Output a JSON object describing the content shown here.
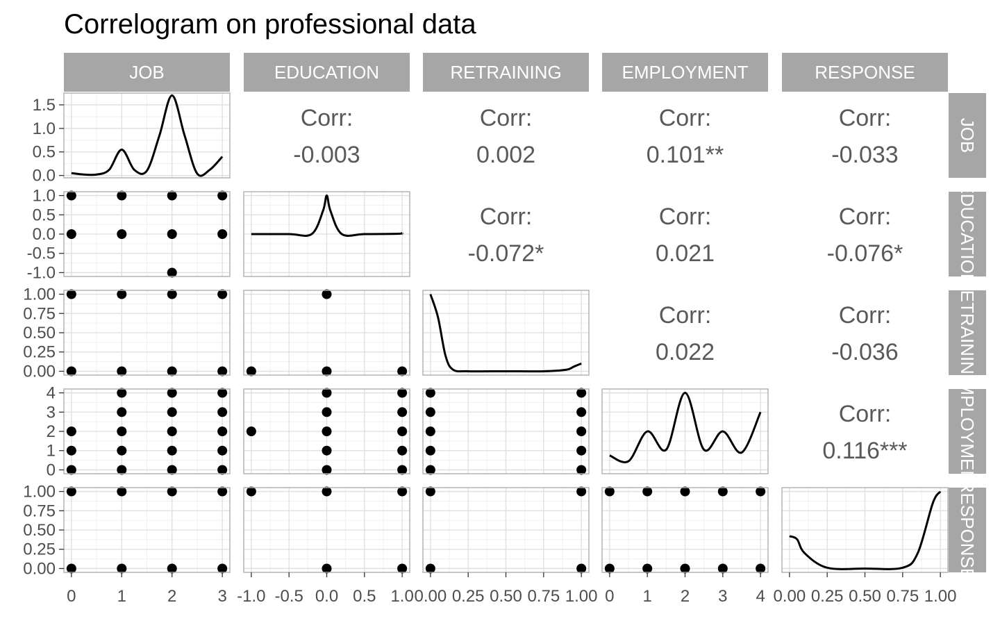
{
  "chart_data": {
    "type": "scatter",
    "title": "Correlogram on professional data",
    "grid": true,
    "variables": [
      "JOB",
      "EDUCATION",
      "RETRAINING",
      "EMPLOYMENT",
      "RESPONSE"
    ],
    "column_strips": [
      "JOB",
      "EDUCATION",
      "RETRAINING",
      "EMPLOYMENT",
      "RESPONSE"
    ],
    "row_strips": [
      "JOB",
      "EDUCATION",
      "RETRAINING",
      "EMPLOYMENT",
      "RESPONSE"
    ],
    "x_axes": [
      {
        "range": [
          -0.15,
          3.15
        ],
        "ticks": [
          0,
          1,
          2,
          3
        ],
        "tick_labels": [
          "0",
          "1",
          "2",
          "3"
        ]
      },
      {
        "range": [
          -1.1,
          1.1
        ],
        "ticks": [
          -1,
          -0.5,
          0,
          0.5,
          1
        ],
        "tick_labels": [
          "-1.0",
          "-0.5",
          "0.0",
          "0.5",
          "1.0"
        ]
      },
      {
        "range": [
          -0.05,
          1.05
        ],
        "ticks": [
          0,
          0.25,
          0.5,
          0.75,
          1
        ],
        "tick_labels": [
          "0.00",
          "0.25",
          "0.50",
          "0.75",
          "1.00"
        ]
      },
      {
        "range": [
          -0.2,
          4.2
        ],
        "ticks": [
          0,
          1,
          2,
          3,
          4
        ],
        "tick_labels": [
          "0",
          "1",
          "2",
          "3",
          "4"
        ]
      },
      {
        "range": [
          -0.05,
          1.05
        ],
        "ticks": [
          0,
          0.25,
          0.5,
          0.75,
          1
        ],
        "tick_labels": [
          "0.00",
          "0.25",
          "0.50",
          "0.75",
          "1.00"
        ]
      }
    ],
    "y_axes": [
      {
        "range": [
          -0.05,
          1.75
        ],
        "ticks": [
          0,
          0.5,
          1,
          1.5
        ],
        "tick_labels": [
          "0.0",
          "0.5",
          "1.0",
          "1.5"
        ]
      },
      {
        "range": [
          -1.1,
          1.1
        ],
        "ticks": [
          -1,
          -0.5,
          0,
          0.5,
          1
        ],
        "tick_labels": [
          "-1.0",
          "-0.5",
          "0.0",
          "0.5",
          "1.0"
        ]
      },
      {
        "range": [
          -0.05,
          1.05
        ],
        "ticks": [
          0,
          0.25,
          0.5,
          0.75,
          1
        ],
        "tick_labels": [
          "0.00",
          "0.25",
          "0.50",
          "0.75",
          "1.00"
        ]
      },
      {
        "range": [
          -0.2,
          4.2
        ],
        "ticks": [
          0,
          1,
          2,
          3,
          4
        ],
        "tick_labels": [
          "0",
          "1",
          "2",
          "3",
          "4"
        ]
      },
      {
        "range": [
          -0.05,
          1.05
        ],
        "ticks": [
          0,
          0.25,
          0.5,
          0.75,
          1
        ],
        "tick_labels": [
          "0.00",
          "0.25",
          "0.50",
          "0.75",
          "1.00"
        ]
      }
    ],
    "correlations": [
      {
        "row": "JOB",
        "col": "EDUCATION",
        "label": "Corr:",
        "value": "-0.003"
      },
      {
        "row": "JOB",
        "col": "RETRAINING",
        "label": "Corr:",
        "value": "0.002"
      },
      {
        "row": "JOB",
        "col": "EMPLOYMENT",
        "label": "Corr:",
        "value": "0.101**"
      },
      {
        "row": "JOB",
        "col": "RESPONSE",
        "label": "Corr:",
        "value": "-0.033"
      },
      {
        "row": "EDUCATION",
        "col": "RETRAINING",
        "label": "Corr:",
        "value": "-0.072*"
      },
      {
        "row": "EDUCATION",
        "col": "EMPLOYMENT",
        "label": "Corr:",
        "value": "0.021"
      },
      {
        "row": "EDUCATION",
        "col": "RESPONSE",
        "label": "Corr:",
        "value": "-0.076*"
      },
      {
        "row": "RETRAINING",
        "col": "EMPLOYMENT",
        "label": "Corr:",
        "value": "0.022"
      },
      {
        "row": "RETRAINING",
        "col": "RESPONSE",
        "label": "Corr:",
        "value": "-0.036"
      },
      {
        "row": "EMPLOYMENT",
        "col": "RESPONSE",
        "label": "Corr:",
        "value": "0.116***"
      }
    ],
    "densities": [
      {
        "variable": "JOB",
        "x": [
          0,
          0.25,
          0.5,
          0.75,
          1,
          1.25,
          1.5,
          1.75,
          2,
          2.25,
          2.5,
          2.75,
          3
        ],
        "y": [
          0.05,
          0.02,
          0.02,
          0.12,
          0.55,
          0.12,
          0.1,
          0.85,
          1.7,
          0.85,
          0.04,
          0.12,
          0.4
        ]
      },
      {
        "variable": "EDUCATION",
        "x": [
          -1,
          -0.5,
          -0.2,
          -0.05,
          0,
          0.05,
          0.2,
          0.5,
          0.95,
          1
        ],
        "y": [
          0,
          0,
          0,
          0.6,
          1,
          0.6,
          0,
          0,
          0.01,
          0.03
        ]
      },
      {
        "variable": "RETRAINING",
        "x": [
          0,
          0.05,
          0.1,
          0.15,
          0.25,
          0.5,
          0.75,
          0.9,
          0.95,
          1
        ],
        "y": [
          1,
          0.7,
          0.2,
          0.02,
          0,
          0,
          0,
          0.02,
          0.06,
          0.1
        ]
      },
      {
        "variable": "EMPLOYMENT",
        "x": [
          0,
          0.5,
          1,
          1.5,
          2,
          2.5,
          3,
          3.5,
          4
        ],
        "y": [
          0.75,
          0.45,
          2,
          1.05,
          4,
          1.05,
          2,
          0.9,
          3
        ]
      },
      {
        "variable": "RESPONSE",
        "x": [
          0,
          0.05,
          0.1,
          0.25,
          0.5,
          0.75,
          0.85,
          0.95,
          1
        ],
        "y": [
          0.42,
          0.38,
          0.2,
          0.01,
          0,
          0.01,
          0.2,
          0.85,
          1
        ]
      }
    ],
    "scatter": [
      {
        "x": "JOB",
        "y": "EDUCATION",
        "points": [
          [
            0,
            1
          ],
          [
            1,
            1
          ],
          [
            2,
            1
          ],
          [
            3,
            1
          ],
          [
            0,
            0
          ],
          [
            1,
            0
          ],
          [
            2,
            0
          ],
          [
            3,
            0
          ],
          [
            2,
            -1
          ]
        ]
      },
      {
        "x": "JOB",
        "y": "RETRAINING",
        "points": [
          [
            0,
            1
          ],
          [
            1,
            1
          ],
          [
            2,
            1
          ],
          [
            3,
            1
          ],
          [
            0,
            0
          ],
          [
            1,
            0
          ],
          [
            2,
            0
          ],
          [
            3,
            0
          ]
        ]
      },
      {
        "x": "EDUCATION",
        "y": "RETRAINING",
        "points": [
          [
            0,
            1
          ],
          [
            -1,
            0
          ],
          [
            0,
            0
          ],
          [
            1,
            0
          ]
        ]
      },
      {
        "x": "JOB",
        "y": "EMPLOYMENT",
        "points": [
          [
            1,
            4
          ],
          [
            2,
            4
          ],
          [
            3,
            4
          ],
          [
            1,
            3
          ],
          [
            2,
            3
          ],
          [
            3,
            3
          ],
          [
            0,
            2
          ],
          [
            1,
            2
          ],
          [
            2,
            2
          ],
          [
            3,
            2
          ],
          [
            0,
            1
          ],
          [
            1,
            1
          ],
          [
            2,
            1
          ],
          [
            3,
            1
          ],
          [
            0,
            0
          ],
          [
            1,
            0
          ],
          [
            2,
            0
          ],
          [
            3,
            0
          ]
        ]
      },
      {
        "x": "EDUCATION",
        "y": "EMPLOYMENT",
        "points": [
          [
            0,
            4
          ],
          [
            1,
            4
          ],
          [
            0,
            3
          ],
          [
            1,
            3
          ],
          [
            -1,
            2
          ],
          [
            0,
            2
          ],
          [
            1,
            2
          ],
          [
            0,
            1
          ],
          [
            1,
            1
          ],
          [
            0,
            0
          ],
          [
            1,
            0
          ]
        ]
      },
      {
        "x": "RETRAINING",
        "y": "EMPLOYMENT",
        "points": [
          [
            0,
            4
          ],
          [
            1,
            4
          ],
          [
            0,
            3
          ],
          [
            1,
            3
          ],
          [
            0,
            2
          ],
          [
            1,
            2
          ],
          [
            0,
            1
          ],
          [
            1,
            1
          ],
          [
            0,
            0
          ],
          [
            1,
            0
          ]
        ]
      },
      {
        "x": "JOB",
        "y": "RESPONSE",
        "points": [
          [
            0,
            1
          ],
          [
            1,
            1
          ],
          [
            2,
            1
          ],
          [
            3,
            1
          ],
          [
            0,
            0
          ],
          [
            1,
            0
          ],
          [
            2,
            0
          ],
          [
            3,
            0
          ]
        ]
      },
      {
        "x": "EDUCATION",
        "y": "RESPONSE",
        "points": [
          [
            -1,
            1
          ],
          [
            0,
            1
          ],
          [
            1,
            1
          ],
          [
            0,
            0
          ],
          [
            1,
            0
          ]
        ]
      },
      {
        "x": "RETRAINING",
        "y": "RESPONSE",
        "points": [
          [
            0,
            1
          ],
          [
            1,
            1
          ],
          [
            0,
            0
          ],
          [
            1,
            0
          ]
        ]
      },
      {
        "x": "EMPLOYMENT",
        "y": "RESPONSE",
        "points": [
          [
            0,
            1
          ],
          [
            1,
            1
          ],
          [
            2,
            1
          ],
          [
            3,
            1
          ],
          [
            4,
            1
          ],
          [
            0,
            0
          ],
          [
            1,
            0
          ],
          [
            2,
            0
          ],
          [
            3,
            0
          ],
          [
            4,
            0
          ]
        ]
      }
    ],
    "colors": {
      "strip_fill": "#a6a6a6",
      "strip_text": "#ffffff",
      "panel_border": "#b3b3b3",
      "grid_major": "#dedede",
      "grid_minor": "#efefef",
      "points": "#000000",
      "density_line": "#000000",
      "corr_text": "#595959",
      "tick_text": "#4d4d4d",
      "tick_mark": "#333333",
      "title": "#000000"
    }
  }
}
